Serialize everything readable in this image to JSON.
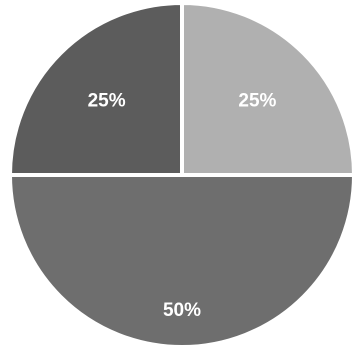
{
  "chart_data": {
    "type": "pie",
    "title": "",
    "labels": [
      "25%",
      "25%",
      "50%"
    ],
    "values": [
      25,
      25,
      50
    ],
    "colors": [
      "#b0b0b0",
      "#5c5c5c",
      "#6e6e6e"
    ],
    "value_suffix": "%",
    "legend": "none",
    "separator_color": "#ffffff"
  }
}
